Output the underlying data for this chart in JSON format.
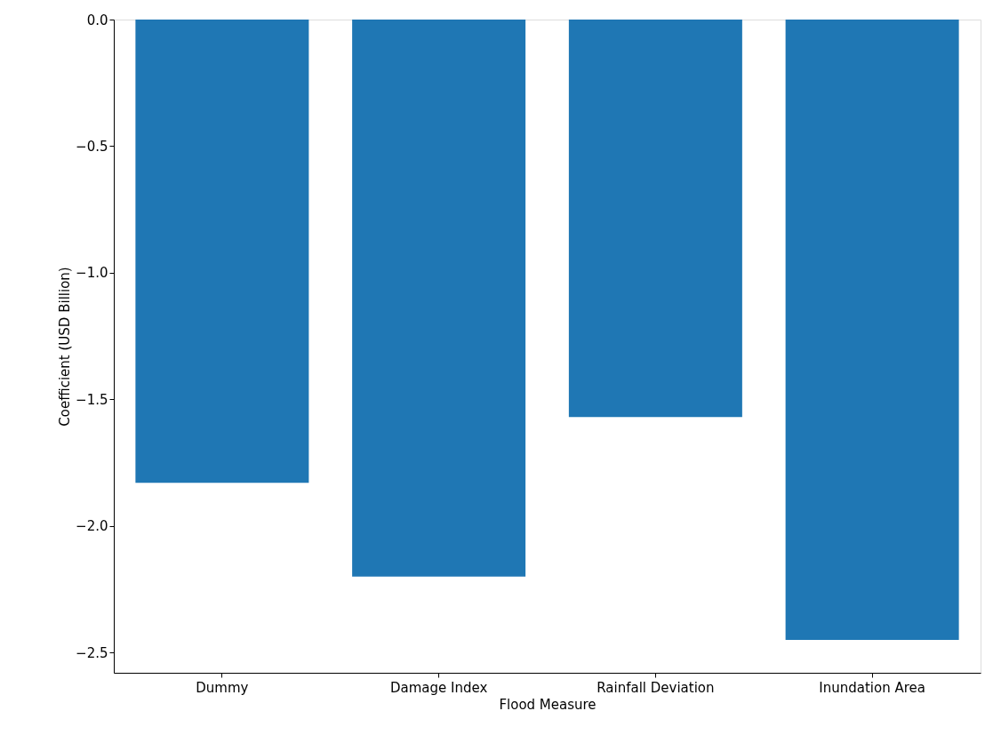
{
  "chart_data": {
    "type": "bar",
    "xlabel": "Flood Measure",
    "ylabel": "Coefficient (USD Billion)",
    "categories": [
      "Dummy",
      "Damage Index",
      "Rainfall Deviation",
      "Inundation Area"
    ],
    "values": [
      -1.83,
      -2.2,
      -1.57,
      -2.45
    ],
    "color": "#1f77b4",
    "ylim": [
      -2.58,
      0.0
    ],
    "yticks": [
      {
        "value": -2.5,
        "label": "−2.5"
      },
      {
        "value": -2.0,
        "label": "−2.0"
      },
      {
        "value": -1.5,
        "label": "−1.5"
      },
      {
        "value": -1.0,
        "label": "−1.0"
      },
      {
        "value": -0.5,
        "label": "−0.5"
      },
      {
        "value": 0.0,
        "label": "0.0"
      }
    ],
    "grid": false
  }
}
